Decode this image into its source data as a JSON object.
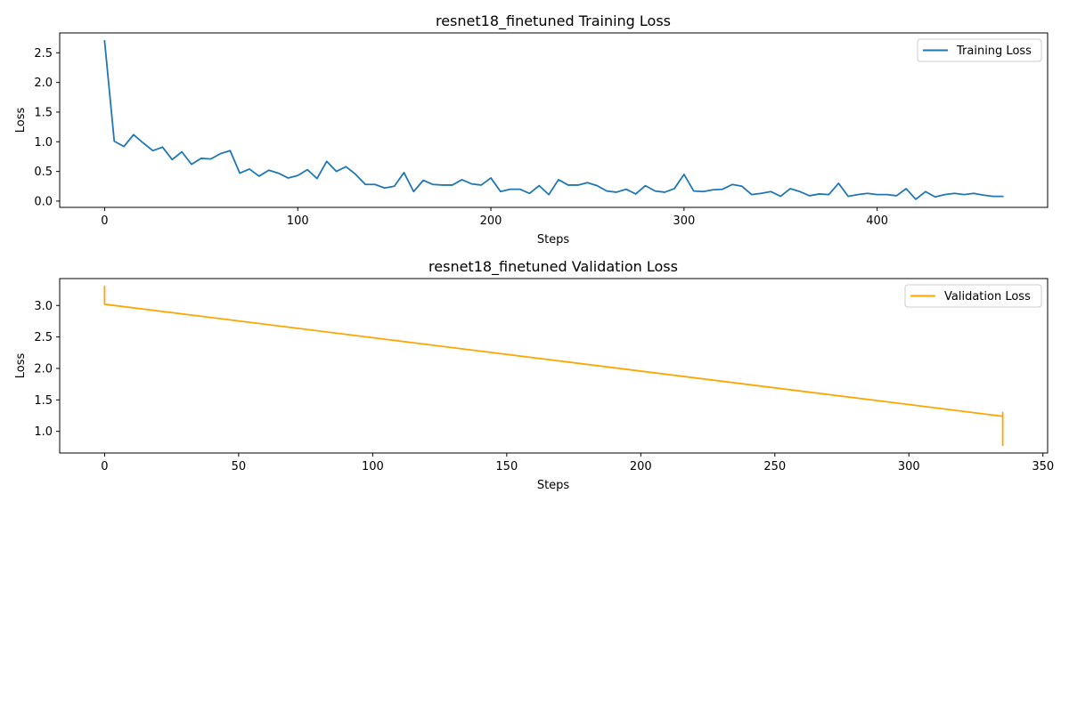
{
  "chart_data": [
    {
      "type": "line",
      "title": "resnet18_finetuned Training Loss",
      "xlabel": "Steps",
      "ylabel": "Loss",
      "xlim": [
        -23.25,
        488.25
      ],
      "ylim": [
        -0.106,
        2.835
      ],
      "xticks": [
        0,
        100,
        200,
        300,
        400
      ],
      "xtick_labels": [
        "0",
        "100",
        "200",
        "300",
        "400"
      ],
      "yticks": [
        0.0,
        0.5,
        1.0,
        1.5,
        2.0,
        2.5
      ],
      "ytick_labels": [
        "0.0",
        "0.5",
        "1.0",
        "1.5",
        "2.0",
        "2.5"
      ],
      "grid": false,
      "legend_position": "upper right",
      "series": [
        {
          "name": "Training Loss",
          "color": "#1f77b4",
          "x": [
            0,
            5,
            10,
            15,
            20,
            25,
            30,
            35,
            40,
            45,
            50,
            55,
            60,
            65,
            70,
            75,
            80,
            85,
            90,
            95,
            100,
            105,
            110,
            115,
            120,
            125,
            130,
            135,
            140,
            145,
            150,
            155,
            160,
            165,
            170,
            175,
            180,
            185,
            190,
            195,
            200,
            205,
            210,
            215,
            220,
            225,
            230,
            235,
            240,
            245,
            250,
            255,
            260,
            265,
            270,
            275,
            280,
            285,
            290,
            295,
            300,
            305,
            310,
            315,
            320,
            325,
            330,
            335,
            340,
            345,
            350,
            355,
            360,
            365,
            370,
            375,
            380,
            385,
            390,
            395,
            400,
            405,
            410,
            415,
            420,
            425,
            430,
            435,
            440,
            445,
            450,
            455,
            460,
            465
          ],
          "y": [
            2.7,
            1.01,
            0.92,
            1.12,
            0.98,
            0.85,
            0.91,
            0.7,
            0.83,
            0.62,
            0.72,
            0.71,
            0.8,
            0.85,
            0.47,
            0.54,
            0.42,
            0.52,
            0.47,
            0.39,
            0.43,
            0.53,
            0.38,
            0.67,
            0.5,
            0.58,
            0.45,
            0.28,
            0.28,
            0.22,
            0.25,
            0.48,
            0.16,
            0.35,
            0.28,
            0.27,
            0.27,
            0.36,
            0.29,
            0.27,
            0.39,
            0.16,
            0.2,
            0.2,
            0.13,
            0.26,
            0.11,
            0.36,
            0.27,
            0.27,
            0.31,
            0.26,
            0.17,
            0.15,
            0.2,
            0.12,
            0.26,
            0.17,
            0.15,
            0.21,
            0.45,
            0.17,
            0.16,
            0.19,
            0.2,
            0.28,
            0.25,
            0.11,
            0.13,
            0.16,
            0.08,
            0.21,
            0.16,
            0.09,
            0.12,
            0.11,
            0.3,
            0.08,
            0.11,
            0.13,
            0.11,
            0.11,
            0.09,
            0.21,
            0.03,
            0.16,
            0.07,
            0.11,
            0.13,
            0.11,
            0.13,
            0.1,
            0.08,
            0.08
          ]
        }
      ]
    },
    {
      "type": "line",
      "title": "resnet18_finetuned Validation Loss",
      "xlabel": "Steps",
      "ylabel": "Loss",
      "xlim": [
        -16.75,
        351.75
      ],
      "ylim": [
        0.656,
        3.428
      ],
      "xticks": [
        0,
        50,
        100,
        150,
        200,
        250,
        300,
        350
      ],
      "xtick_labels": [
        "0",
        "50",
        "100",
        "150",
        "200",
        "250",
        "300",
        "350"
      ],
      "yticks": [
        1.0,
        1.5,
        2.0,
        2.5,
        3.0
      ],
      "ytick_labels": [
        "1.0",
        "1.5",
        "2.0",
        "2.5",
        "3.0"
      ],
      "grid": false,
      "legend_position": "upper right",
      "series": [
        {
          "name": "Validation Loss",
          "color": "#ffa500",
          "x": [
            0,
            0,
            335,
            335,
            335
          ],
          "y": [
            3.3,
            3.02,
            1.24,
            1.3,
            0.78
          ]
        }
      ]
    }
  ]
}
